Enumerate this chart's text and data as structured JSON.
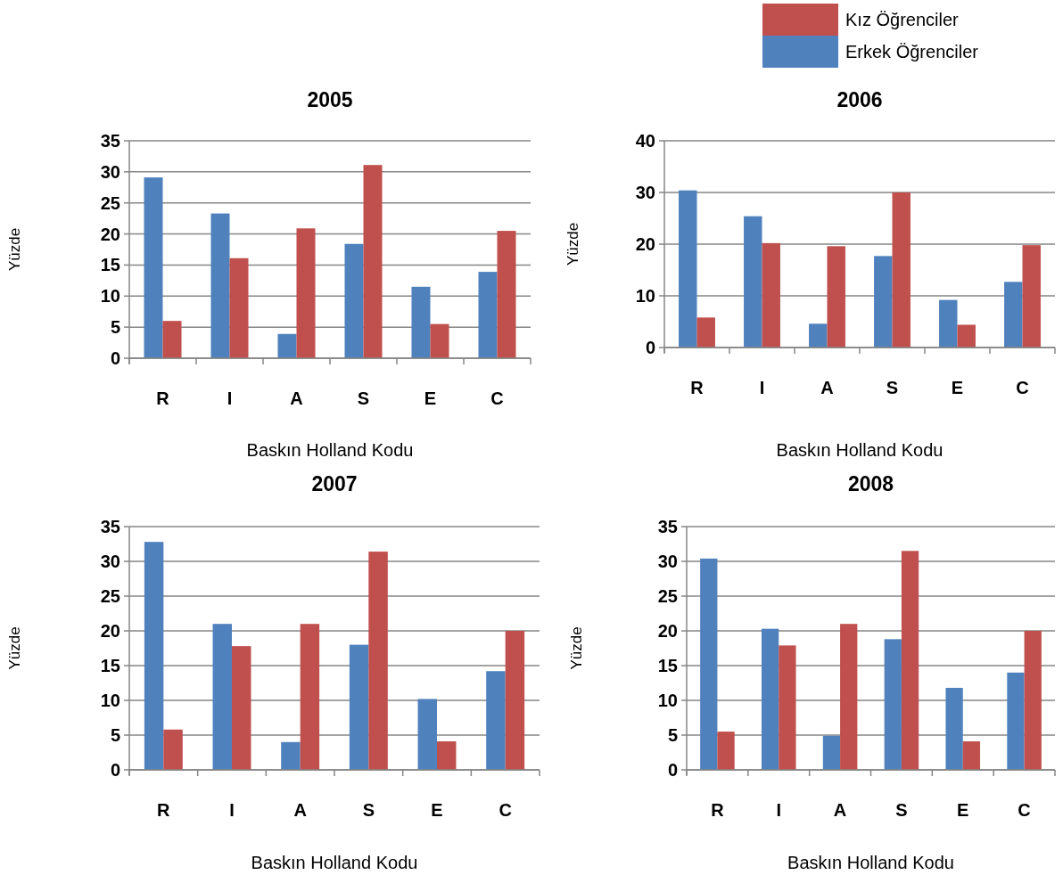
{
  "chart_data": [
    {
      "type": "bar",
      "title": "2005",
      "xlabel": "Baskın Holland Kodu",
      "ylabel": "Yüzde",
      "categories": [
        "R",
        "I",
        "A",
        "S",
        "E",
        "C"
      ],
      "ylim": [
        0,
        35
      ],
      "yticks": [
        0,
        5,
        10,
        15,
        20,
        25,
        30,
        35
      ],
      "grid": "y",
      "legend": false,
      "series": [
        {
          "color": "#4f81bd",
          "values": [
            29.1,
            23.3,
            3.9,
            18.4,
            11.5,
            13.9
          ]
        },
        {
          "color": "#c0504d",
          "values": [
            6.0,
            16.1,
            20.9,
            31.1,
            5.5,
            20.5
          ]
        }
      ]
    },
    {
      "type": "bar",
      "title": "2006",
      "xlabel": "Baskın Holland Kodu",
      "ylabel": "Yüzde",
      "categories": [
        "R",
        "I",
        "A",
        "S",
        "E",
        "C"
      ],
      "ylim": [
        0,
        40
      ],
      "yticks": [
        0,
        10,
        20,
        30,
        40
      ],
      "grid": "y",
      "legend": "top right",
      "series": [
        {
          "name": "Erkek Öğrenciler",
          "color": "#4f81bd",
          "values": [
            30.4,
            25.4,
            4.6,
            17.7,
            9.2,
            12.7
          ]
        },
        {
          "name": "Kız Öğrenciler",
          "color": "#c0504d",
          "values": [
            5.8,
            20.2,
            19.6,
            30.0,
            4.4,
            19.8
          ]
        }
      ]
    },
    {
      "type": "bar",
      "title": "2007",
      "xlabel": "Baskın Holland Kodu",
      "ylabel": "Yüzde",
      "categories": [
        "R",
        "I",
        "A",
        "S",
        "E",
        "C"
      ],
      "ylim": [
        0,
        35
      ],
      "yticks": [
        0,
        5,
        10,
        15,
        20,
        25,
        30,
        35
      ],
      "grid": "y",
      "legend": false,
      "series": [
        {
          "color": "#4f81bd",
          "values": [
            32.8,
            21.0,
            4.0,
            18.0,
            10.2,
            14.2
          ]
        },
        {
          "color": "#c0504d",
          "values": [
            5.8,
            17.8,
            21.0,
            31.4,
            4.1,
            20.0
          ]
        }
      ]
    },
    {
      "type": "bar",
      "title": "2008",
      "xlabel": "Baskın Holland Kodu",
      "ylabel": "Yüzde",
      "categories": [
        "R",
        "I",
        "A",
        "S",
        "E",
        "C"
      ],
      "ylim": [
        0,
        35
      ],
      "yticks": [
        0,
        5,
        10,
        15,
        20,
        25,
        30,
        35
      ],
      "grid": "y",
      "legend": false,
      "series": [
        {
          "color": "#4f81bd",
          "values": [
            30.4,
            20.3,
            4.9,
            18.8,
            11.8,
            14.0
          ]
        },
        {
          "color": "#c0504d",
          "values": [
            5.5,
            17.9,
            21.0,
            31.5,
            4.1,
            20.0
          ]
        }
      ]
    }
  ]
}
